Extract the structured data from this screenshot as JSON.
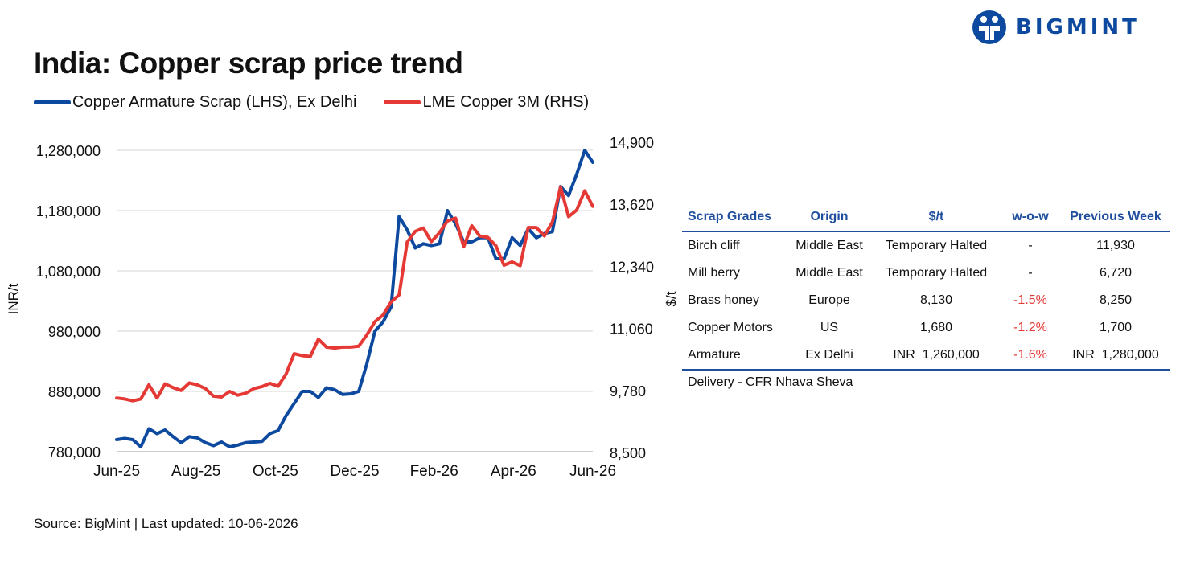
{
  "title": "India: Copper scrap price trend",
  "brand": {
    "name": "BIGMINT",
    "color": "#0d4a9f"
  },
  "source": "Source: BigMint | Last updated: 10-06-2026",
  "chart_data": {
    "type": "line",
    "title": "India: Copper scrap price trend",
    "x_ticks": [
      "Jun-25",
      "Aug-25",
      "Oct-25",
      "Dec-25",
      "Feb-26",
      "Apr-26",
      "Jun-26"
    ],
    "ylabel": "INR/t",
    "y2label": "$/t",
    "ylim": [
      780000,
      1280000
    ],
    "y_ticks": [
      "1,280,000",
      "1,180,000",
      "1,080,000",
      "980,000",
      "880,000",
      "780,000"
    ],
    "y2lim": [
      8500,
      14900
    ],
    "y2_ticks": [
      "14,900",
      "13,620",
      "12,340",
      "11,060",
      "9,780",
      "8,500"
    ],
    "grid": "horizontal",
    "legend_position": "top-left",
    "series": [
      {
        "name": "Copper Armature Scrap (LHS), Ex Delhi",
        "axis": "left",
        "color": "#0d4a9f",
        "values": [
          800000,
          802000,
          800000,
          788000,
          818000,
          810000,
          816000,
          805000,
          795000,
          805000,
          803000,
          795000,
          790000,
          796000,
          788000,
          791000,
          795000,
          796000,
          797000,
          810000,
          815000,
          840000,
          860000,
          880000,
          880000,
          870000,
          886000,
          883000,
          875000,
          876000,
          880000,
          926000,
          980000,
          995000,
          1020000,
          1170000,
          1148000,
          1118000,
          1125000,
          1122000,
          1125000,
          1180000,
          1158000,
          1128000,
          1128000,
          1135000,
          1135000,
          1100000,
          1100000,
          1135000,
          1122000,
          1150000,
          1135000,
          1142000,
          1145000,
          1220000,
          1205000,
          1240000,
          1280000,
          1260000
        ]
      },
      {
        "name": "LME Copper 3M (RHS)",
        "axis": "right",
        "color": "#e53935",
        "values": [
          9640,
          9620,
          9580,
          9620,
          9920,
          9640,
          9940,
          9860,
          9800,
          9960,
          9920,
          9840,
          9680,
          9660,
          9780,
          9700,
          9740,
          9840,
          9880,
          9950,
          9890,
          10150,
          10580,
          10540,
          10520,
          10890,
          10720,
          10700,
          10720,
          10720,
          10740,
          10980,
          11260,
          11400,
          11680,
          11830,
          12950,
          13180,
          13250,
          12960,
          13150,
          13400,
          13460,
          12850,
          13300,
          13080,
          13050,
          12870,
          12460,
          12530,
          12450,
          13260,
          13260,
          13080,
          13380,
          14120,
          13490,
          13630,
          14040,
          13710
        ]
      }
    ]
  },
  "table": {
    "headers": [
      "Scrap Grades",
      "Origin",
      "$/t",
      "w-o-w",
      "Previous Week"
    ],
    "rows": [
      {
        "grade": "Birch cliff",
        "origin": "Middle East",
        "price": "Temporary Halted",
        "wow": "-",
        "prev": "11,930"
      },
      {
        "grade": "Mill berry",
        "origin": "Middle East",
        "price": "Temporary Halted",
        "wow": "-",
        "prev": "6,720"
      },
      {
        "grade": "Brass honey",
        "origin": "Europe",
        "price": "8,130",
        "wow": "-1.5%",
        "prev": "8,250"
      },
      {
        "grade": "Copper Motors",
        "origin": "US",
        "price": "1,680",
        "wow": "-1.2%",
        "prev": "1,700"
      },
      {
        "grade": "Armature",
        "origin": "Ex Delhi",
        "price": "INR  1,260,000",
        "wow": "-1.6%",
        "prev": "INR  1,280,000"
      }
    ],
    "footer": "Delivery - CFR Nhava Sheva"
  }
}
